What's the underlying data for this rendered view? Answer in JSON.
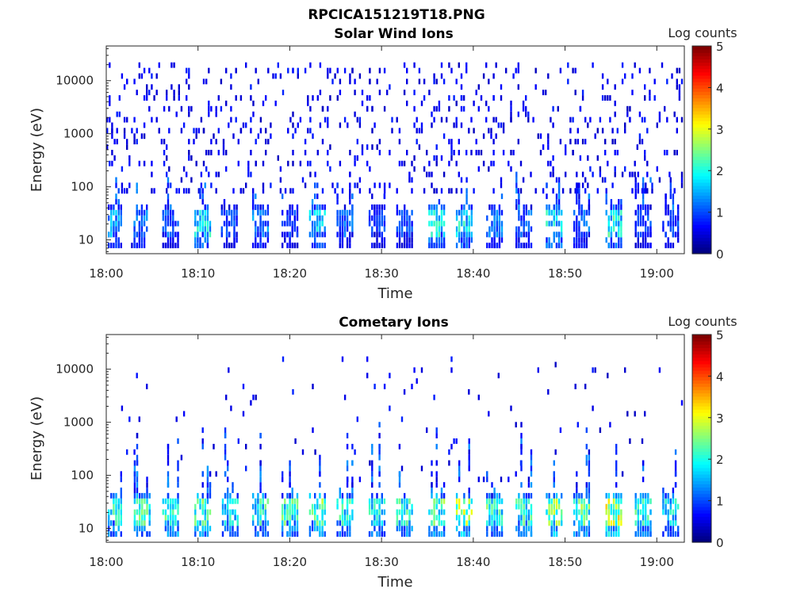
{
  "figure_title": "RPCICA151219T18.PNG",
  "chart_data": [
    {
      "type": "heatmap",
      "title": "Solar Wind Ions",
      "xlabel": "Time",
      "ylabel": "Energy (eV)",
      "x_ticks": [
        "18:00",
        "18:10",
        "18:20",
        "18:30",
        "18:40",
        "18:50",
        "19:00"
      ],
      "xlim": [
        "18:00",
        "19:03"
      ],
      "y_ticks": [
        {
          "value": 10,
          "label": "10"
        },
        {
          "value": 100,
          "label": "100"
        },
        {
          "value": 1000,
          "label": "1000"
        },
        {
          "value": 10000,
          "label": "10000"
        }
      ],
      "ylim": [
        5.5,
        45000
      ],
      "y_scale": "log",
      "colorbar": {
        "label": "Log counts",
        "ticks": [
          "0",
          "1",
          "2",
          "3",
          "4",
          "5"
        ],
        "range": [
          0,
          5
        ],
        "colormap": "jet"
      },
      "low_energy_bursts": [
        {
          "time_min": 0.8,
          "intensity": 1.5
        },
        {
          "time_min": 3.6,
          "intensity": 1.3
        },
        {
          "time_min": 7.0,
          "intensity": 1.2
        },
        {
          "time_min": 10.5,
          "intensity": 2.0
        },
        {
          "time_min": 13.4,
          "intensity": 1.0
        },
        {
          "time_min": 16.8,
          "intensity": 1.4
        },
        {
          "time_min": 20.0,
          "intensity": 1.0
        },
        {
          "time_min": 23.0,
          "intensity": 1.8
        },
        {
          "time_min": 26.0,
          "intensity": 1.2
        },
        {
          "time_min": 29.5,
          "intensity": 1.0
        },
        {
          "time_min": 32.5,
          "intensity": 1.0
        },
        {
          "time_min": 36.0,
          "intensity": 2.0
        },
        {
          "time_min": 39.0,
          "intensity": 2.0
        },
        {
          "time_min": 42.3,
          "intensity": 1.3
        },
        {
          "time_min": 45.5,
          "intensity": 1.2
        },
        {
          "time_min": 48.8,
          "intensity": 2.0
        },
        {
          "time_min": 51.8,
          "intensity": 1.3
        },
        {
          "time_min": 55.3,
          "intensity": 2.1
        },
        {
          "time_min": 58.5,
          "intensity": 1.0
        },
        {
          "time_min": 61.5,
          "intensity": 1.0
        }
      ],
      "background_counts": {
        "energy_range": [
          80,
          20000
        ],
        "density": 0.09,
        "intensity": 0.3
      }
    },
    {
      "type": "heatmap",
      "title": "Cometary Ions",
      "xlabel": "Time",
      "ylabel": "Energy (eV)",
      "x_ticks": [
        "18:00",
        "18:10",
        "18:20",
        "18:30",
        "18:40",
        "18:50",
        "19:00"
      ],
      "xlim": [
        "18:00",
        "19:03"
      ],
      "y_ticks": [
        {
          "value": 10,
          "label": "10"
        },
        {
          "value": 100,
          "label": "100"
        },
        {
          "value": 1000,
          "label": "1000"
        },
        {
          "value": 10000,
          "label": "10000"
        }
      ],
      "ylim": [
        5.5,
        45000
      ],
      "y_scale": "log",
      "colorbar": {
        "label": "Log counts",
        "ticks": [
          "0",
          "1",
          "2",
          "3",
          "4",
          "5"
        ],
        "range": [
          0,
          5
        ],
        "colormap": "jet"
      },
      "low_energy_bursts": [
        {
          "time_min": 0.8,
          "intensity": 2.2
        },
        {
          "time_min": 3.9,
          "intensity": 2.3
        },
        {
          "time_min": 7.0,
          "intensity": 2.4
        },
        {
          "time_min": 10.5,
          "intensity": 2.4
        },
        {
          "time_min": 13.5,
          "intensity": 2.0
        },
        {
          "time_min": 16.8,
          "intensity": 2.2
        },
        {
          "time_min": 20.0,
          "intensity": 2.3
        },
        {
          "time_min": 23.0,
          "intensity": 2.6
        },
        {
          "time_min": 26.0,
          "intensity": 2.2
        },
        {
          "time_min": 29.5,
          "intensity": 2.0
        },
        {
          "time_min": 32.5,
          "intensity": 2.3
        },
        {
          "time_min": 36.0,
          "intensity": 2.5
        },
        {
          "time_min": 39.0,
          "intensity": 2.8
        },
        {
          "time_min": 42.3,
          "intensity": 2.3
        },
        {
          "time_min": 45.5,
          "intensity": 2.2
        },
        {
          "time_min": 48.8,
          "intensity": 2.8
        },
        {
          "time_min": 51.8,
          "intensity": 2.5
        },
        {
          "time_min": 55.3,
          "intensity": 3.0
        },
        {
          "time_min": 58.5,
          "intensity": 2.2
        },
        {
          "time_min": 61.5,
          "intensity": 2.0
        }
      ],
      "background_counts": {
        "energy_range": [
          80,
          15000
        ],
        "density": 0.012,
        "intensity": 0.3
      }
    }
  ]
}
